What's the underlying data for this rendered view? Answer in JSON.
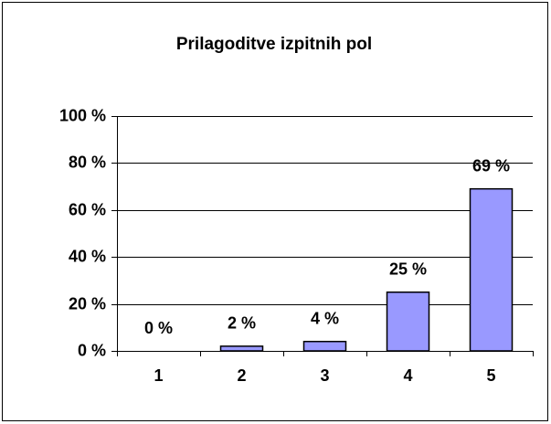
{
  "chart_data": {
    "type": "bar",
    "title": "Prilagoditve izpitnih pol",
    "categories": [
      "1",
      "2",
      "3",
      "4",
      "5"
    ],
    "values": [
      0,
      2,
      4,
      25,
      69
    ],
    "value_labels": [
      "0 %",
      "2 %",
      "4 %",
      "25 %",
      "69 %"
    ],
    "color": "#9999ff",
    "ylim": [
      0,
      100
    ],
    "yticks": [
      {
        "value": 0,
        "label": "0 %"
      },
      {
        "value": 20,
        "label": "20 %"
      },
      {
        "value": 40,
        "label": "40 %"
      },
      {
        "value": 60,
        "label": "60 %"
      },
      {
        "value": 80,
        "label": "80 %"
      },
      {
        "value": 100,
        "label": "100 %"
      }
    ],
    "grid": true
  }
}
